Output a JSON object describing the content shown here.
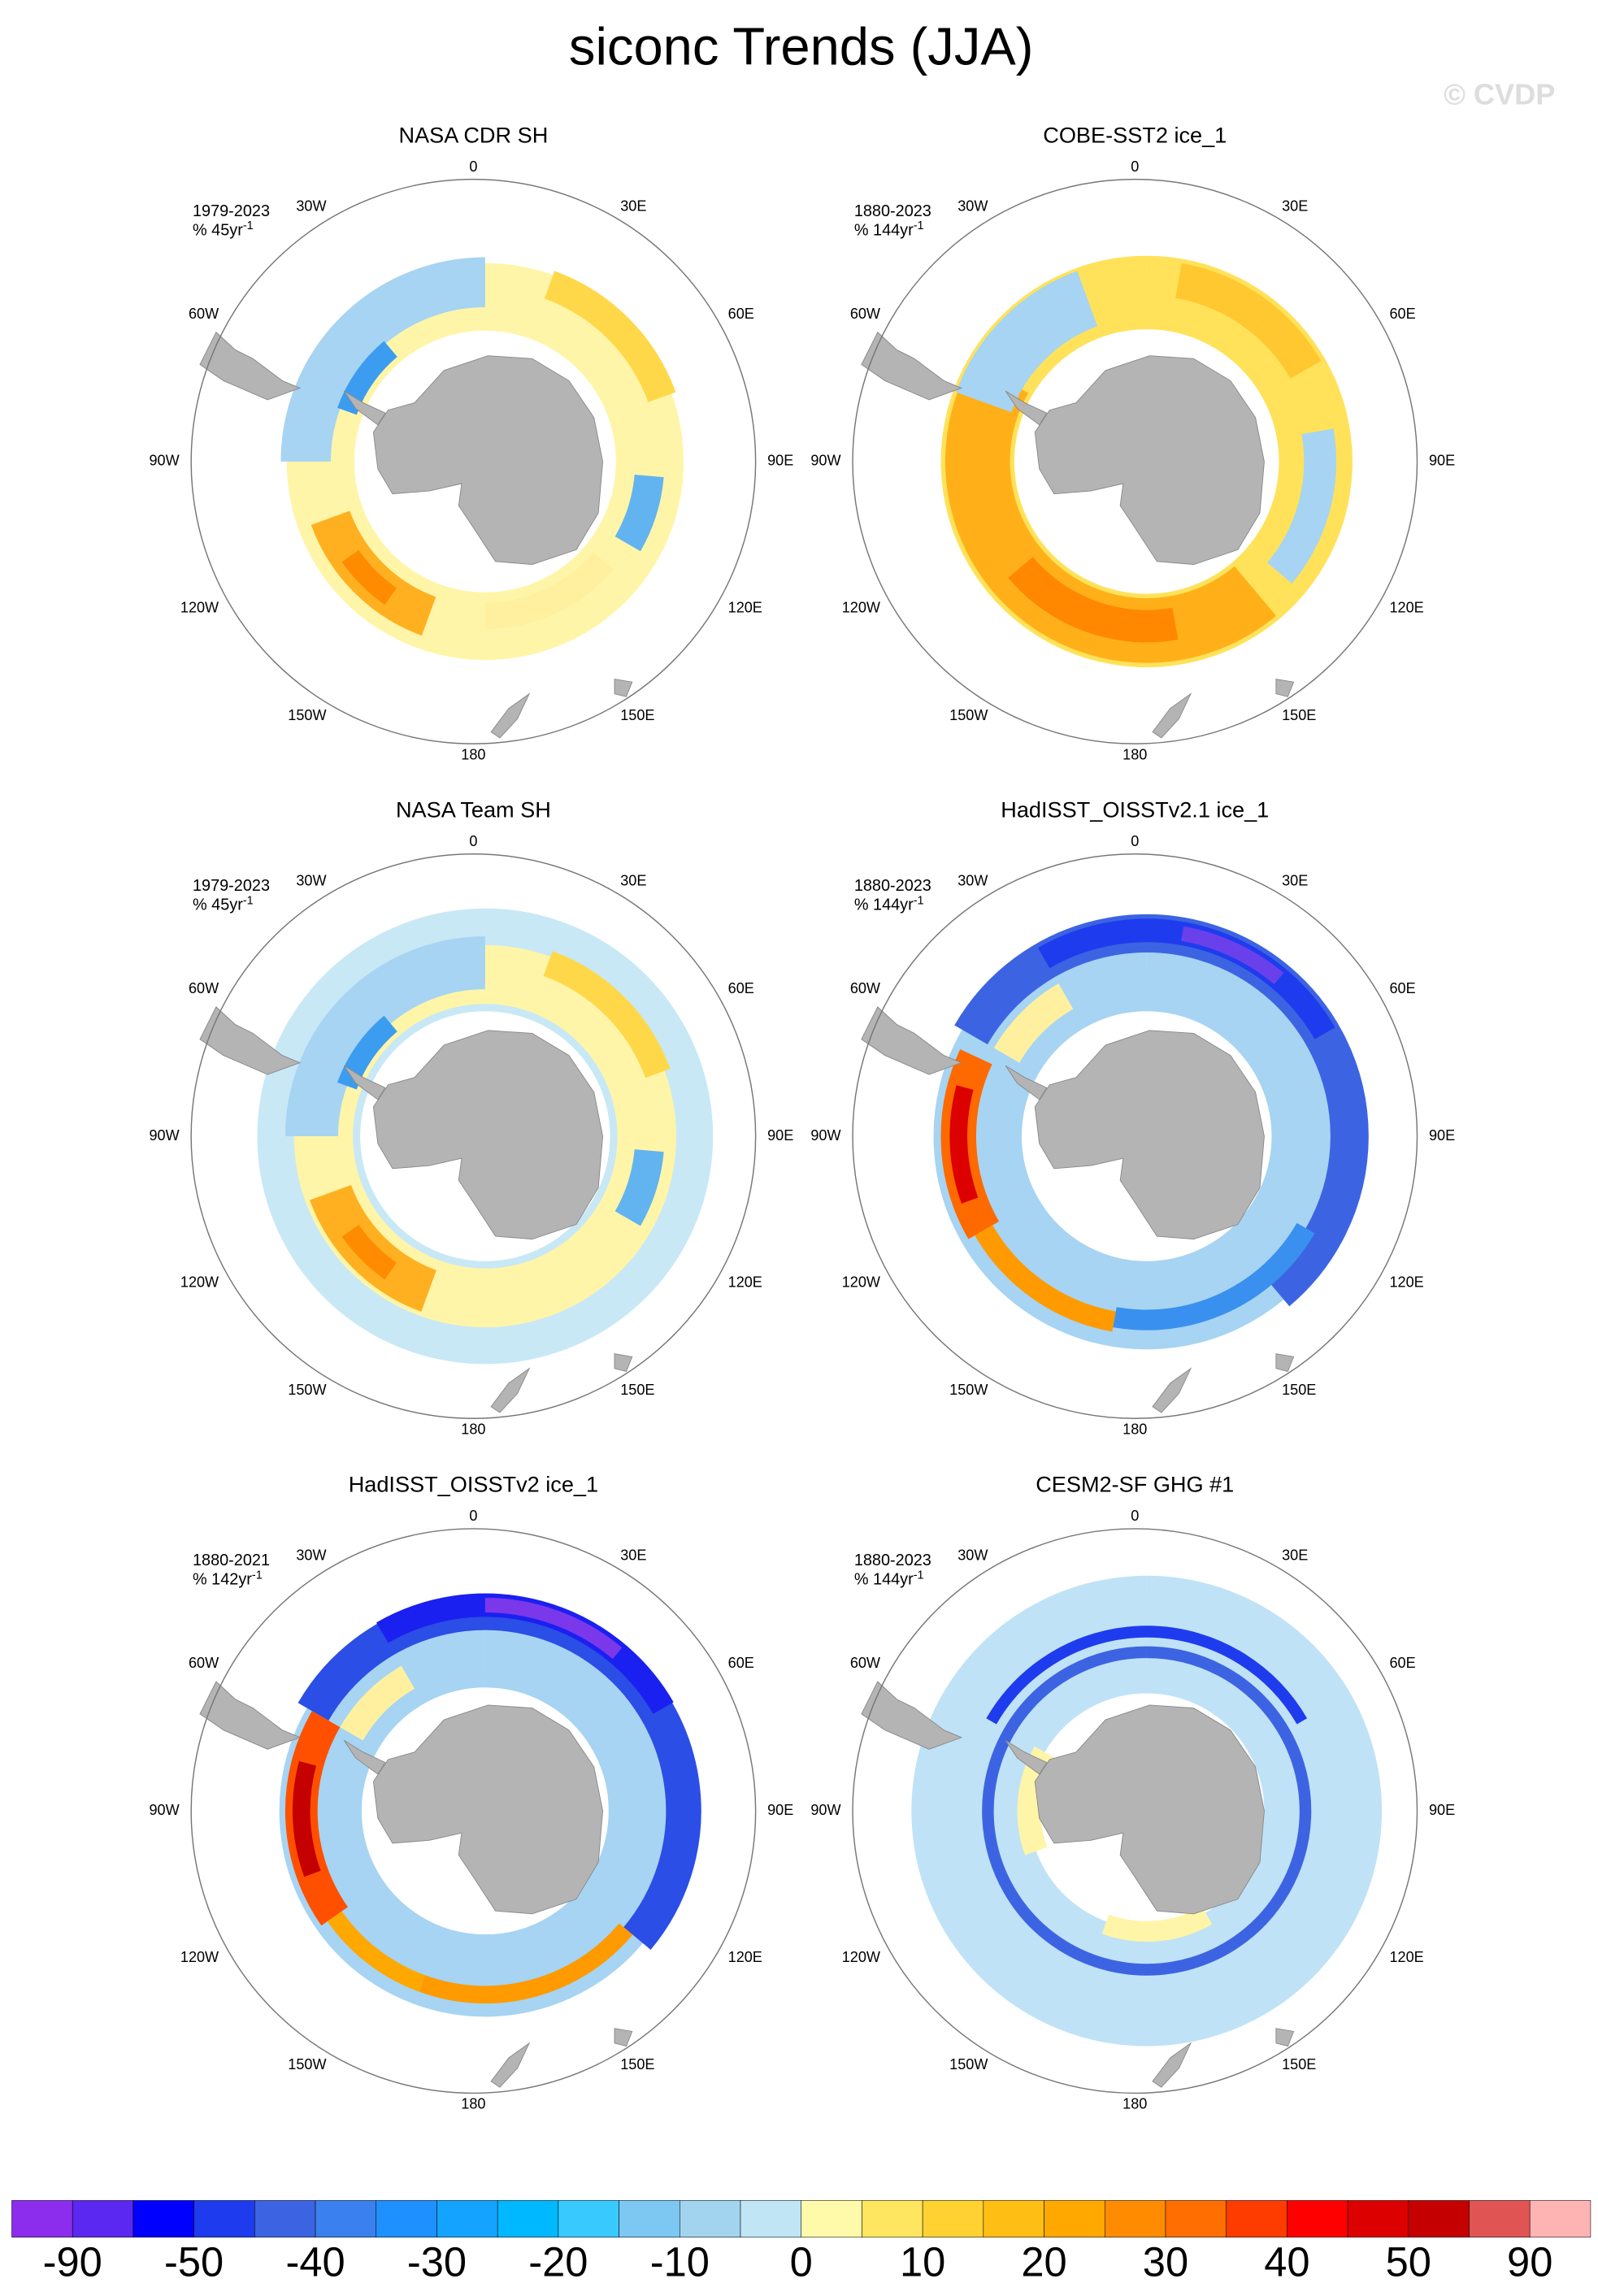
{
  "title": "siconc Trends (JJA)",
  "watermark": "© CVDP",
  "panels": [
    {
      "title": "NASA CDR SH",
      "period": "1979-2023",
      "units": "% 45yr",
      "units_exponent": "-1"
    },
    {
      "title": "COBE-SST2 ice_1",
      "period": "1880-2023",
      "units": "% 144yr",
      "units_exponent": "-1"
    },
    {
      "title": "NASA Team SH",
      "period": "1979-2023",
      "units": "% 45yr",
      "units_exponent": "-1"
    },
    {
      "title": "HadISST_OISSTv2.1 ice_1",
      "period": "1880-2023",
      "units": "% 144yr",
      "units_exponent": "-1"
    },
    {
      "title": "HadISST_OISSTv2 ice_1",
      "period": "1880-2021",
      "units": "% 142yr",
      "units_exponent": "-1"
    },
    {
      "title": "CESM2-SF GHG #1",
      "period": "1880-2023",
      "units": "% 144yr",
      "units_exponent": "-1"
    }
  ],
  "longitude_labels": [
    "0",
    "30E",
    "60E",
    "90E",
    "120E",
    "150E",
    "180",
    "150W",
    "120W",
    "90W",
    "60W",
    "30W"
  ],
  "colorbar": {
    "colors": [
      "#8c2cec",
      "#5a28f0",
      "#0000ff",
      "#1e3ced",
      "#3c64e2",
      "#3a80ee",
      "#1e90ff",
      "#14a4ff",
      "#00b8ff",
      "#38caff",
      "#7cc8f2",
      "#a2d4f0",
      "#c0e6f6",
      "#fffaaa",
      "#ffe660",
      "#ffd232",
      "#ffbe14",
      "#ffa800",
      "#ff8c00",
      "#ff6e00",
      "#ff3c00",
      "#ff0000",
      "#dc0000",
      "#c40000",
      "#e05454",
      "#ffb4b4"
    ],
    "labels": [
      -90,
      -50,
      -40,
      -30,
      -20,
      -10,
      0,
      10,
      20,
      30,
      40,
      50,
      90
    ]
  }
}
